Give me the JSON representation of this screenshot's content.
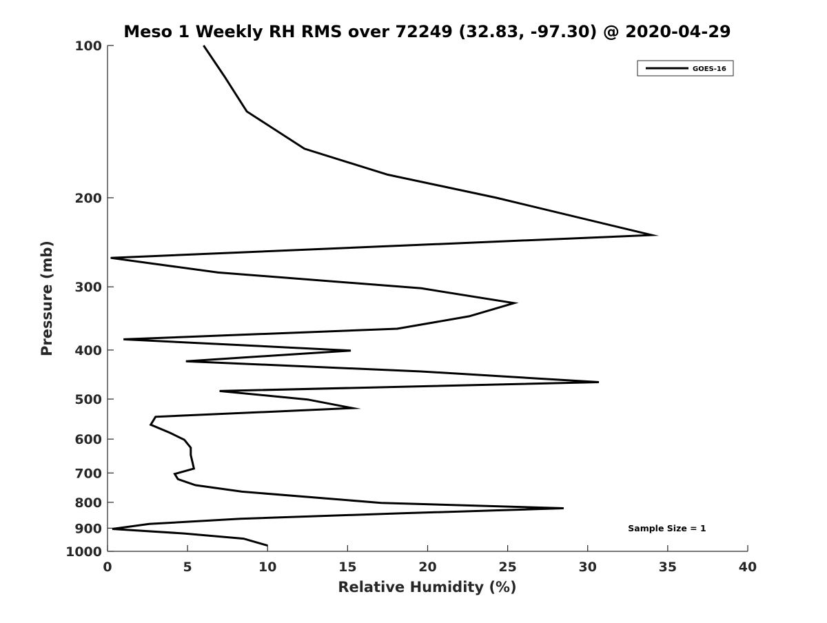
{
  "chart_data": {
    "type": "line",
    "title": "Meso 1 Weekly RH RMS over 72249 (32.83, -97.30) @ 2020-04-29",
    "xlabel": "Relative Humidity (%)",
    "ylabel": "Pressure (mb)",
    "xlim": [
      0,
      40
    ],
    "ylim": [
      100,
      1000
    ],
    "y_scale": "log",
    "y_reversed": true,
    "x_ticks": [
      0,
      5,
      10,
      15,
      20,
      25,
      30,
      35,
      40
    ],
    "y_ticks": [
      100,
      200,
      300,
      400,
      500,
      600,
      700,
      800,
      900,
      1000
    ],
    "grid": false,
    "legend_position": "top-right",
    "annotation": "Sample Size = 1",
    "series": [
      {
        "name": "GOES-16",
        "color": "#000000",
        "points": [
          [
            6.0,
            100
          ],
          [
            7.3,
            115
          ],
          [
            8.7,
            135
          ],
          [
            12.3,
            160
          ],
          [
            17.5,
            180
          ],
          [
            24.3,
            200
          ],
          [
            34.0,
            237
          ],
          [
            0.2,
            263
          ],
          [
            6.9,
            281
          ],
          [
            19.6,
            302
          ],
          [
            25.4,
            323
          ],
          [
            22.6,
            343
          ],
          [
            18.1,
            363
          ],
          [
            1.0,
            381
          ],
          [
            15.2,
            401
          ],
          [
            4.9,
            421
          ],
          [
            19.6,
            441
          ],
          [
            30.7,
            463
          ],
          [
            7.0,
            482
          ],
          [
            12.5,
            501
          ],
          [
            15.3,
            521
          ],
          [
            3.0,
            542
          ],
          [
            2.7,
            562
          ],
          [
            3.9,
            583
          ],
          [
            4.8,
            602
          ],
          [
            5.2,
            624
          ],
          [
            5.2,
            645
          ],
          [
            5.3,
            665
          ],
          [
            5.4,
            686
          ],
          [
            4.2,
            703
          ],
          [
            4.4,
            720
          ],
          [
            5.5,
            740
          ],
          [
            8.4,
            762
          ],
          [
            17.1,
            802
          ],
          [
            28.5,
            822
          ],
          [
            18.4,
            841
          ],
          [
            8.3,
            862
          ],
          [
            2.6,
            883
          ],
          [
            0.3,
            903
          ],
          [
            4.8,
            922
          ],
          [
            8.5,
            944
          ],
          [
            10.0,
            974
          ]
        ]
      }
    ]
  }
}
